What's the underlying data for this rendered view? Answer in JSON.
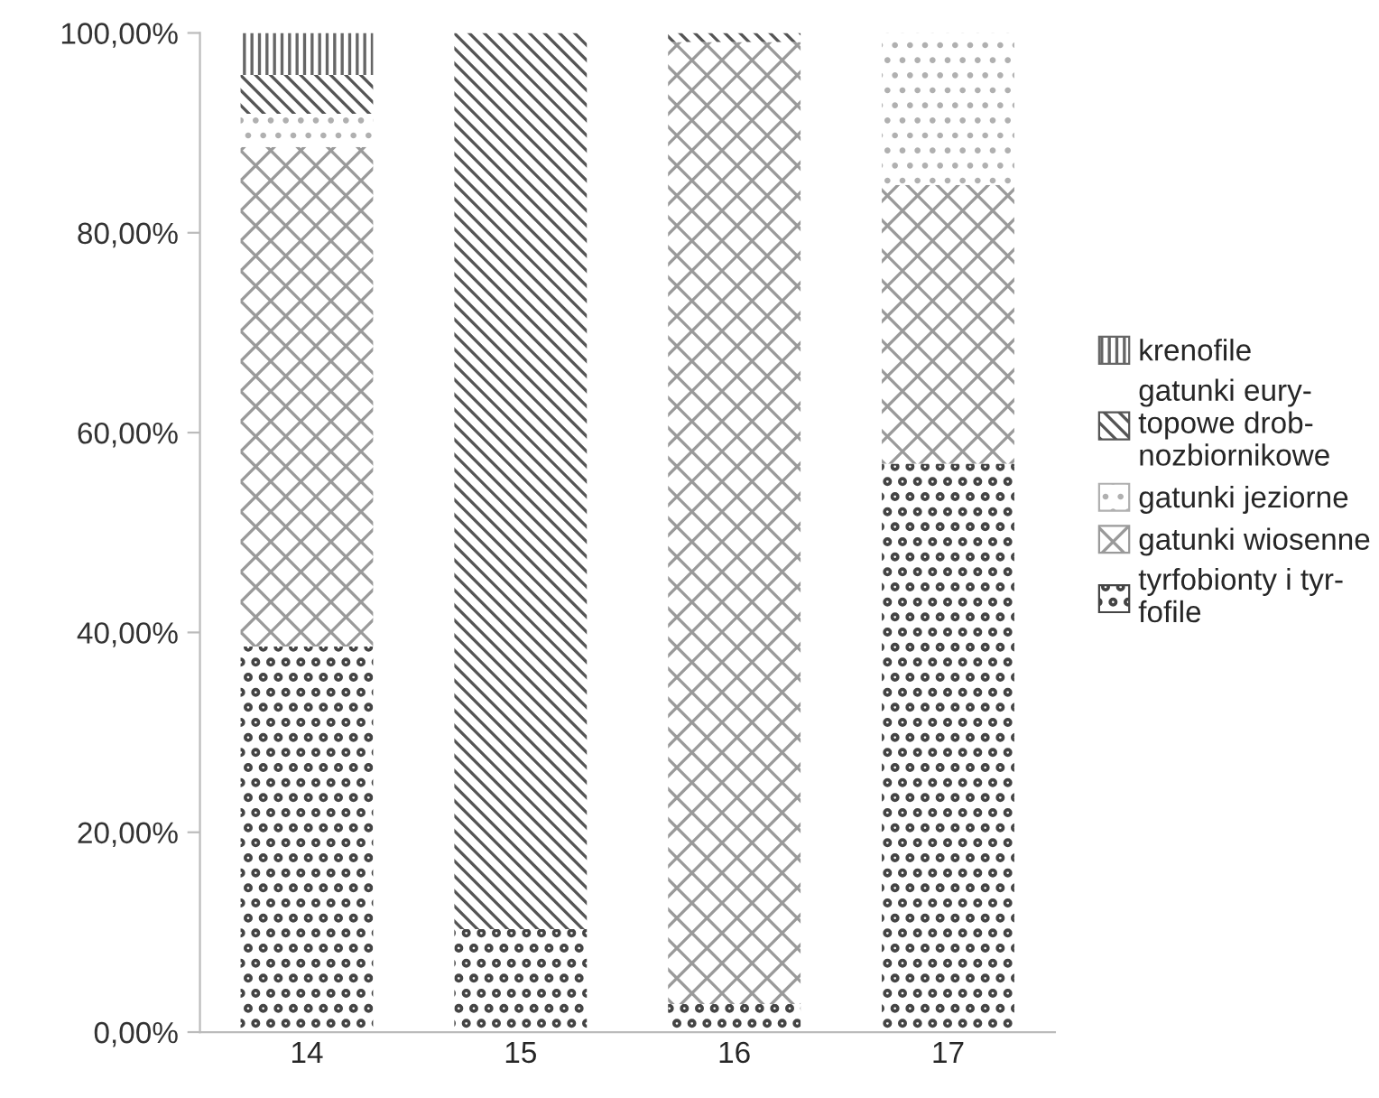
{
  "chart_data": {
    "type": "bar",
    "stacked": true,
    "categories": [
      "14",
      "15",
      "16",
      "17"
    ],
    "series": [
      {
        "name": "tyrfobionty i tyr-\nfofile",
        "color": "#444444",
        "values": [
          38.6,
          10.3,
          2.8,
          56.9
        ]
      },
      {
        "name": "gatunki wiosenne",
        "color": "#9a9a9a",
        "values": [
          50.0,
          null,
          96.3,
          27.9
        ]
      },
      {
        "name": "gatunki jeziorne",
        "color": "#b0b0b0",
        "values": [
          3.3,
          null,
          null,
          15.2
        ]
      },
      {
        "name": "gatunki eury-\ntopowe drob-\nnozbiornikowe",
        "color": "#555555",
        "values": [
          3.9,
          89.7,
          0.9,
          null
        ]
      },
      {
        "name": "krenofile",
        "color": "#666666",
        "values": [
          4.2,
          null,
          null,
          null
        ]
      }
    ],
    "ylim": [
      0,
      100
    ],
    "yticks": [
      {
        "value": 0,
        "label": "0,00%"
      },
      {
        "value": 20,
        "label": "20,00%"
      },
      {
        "value": 40,
        "label": "40,00%"
      },
      {
        "value": 60,
        "label": "60,00%"
      },
      {
        "value": 80,
        "label": "80,00%"
      },
      {
        "value": 100,
        "label": "100,00%"
      }
    ],
    "grid": false,
    "legend": "right"
  }
}
